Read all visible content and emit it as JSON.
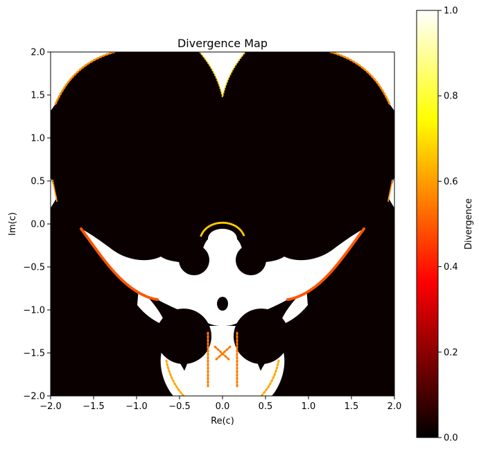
{
  "chart_data": {
    "type": "heatmap",
    "title": "Divergence Map",
    "xlabel": "Re(c)",
    "ylabel": "Im(c)",
    "xlim": [
      -2.0,
      2.0
    ],
    "ylim": [
      -2.0,
      2.0
    ],
    "xticks": [
      -2.0,
      -1.5,
      -1.0,
      -0.5,
      0.0,
      0.5,
      1.0,
      1.5,
      2.0
    ],
    "yticks": [
      -2.0,
      -1.5,
      -1.0,
      -0.5,
      0.0,
      0.5,
      1.0,
      1.5,
      2.0
    ],
    "xtick_labels": [
      "−2.0",
      "−1.5",
      "−1.0",
      "−0.5",
      "0.0",
      "0.5",
      "1.0",
      "1.5",
      "2.0"
    ],
    "ytick_labels": [
      "−2.0",
      "−1.5",
      "−1.0",
      "−0.5",
      "0.0",
      "0.5",
      "1.0",
      "1.5",
      "2.0"
    ],
    "colormap": "hot",
    "colorbar": {
      "label": "Divergence",
      "range": [
        0.0,
        1.0
      ],
      "ticks": [
        0.0,
        0.2,
        0.4,
        0.6,
        0.8,
        1.0
      ],
      "tick_labels": [
        "0.0",
        "0.2",
        "0.4",
        "0.6",
        "0.8",
        "1.0"
      ]
    },
    "grid": false,
    "regions": {
      "bounded_set_value": 0.0,
      "escaped_value": 1.0,
      "boundary_values": "0.0-1.0"
    }
  },
  "colors": {
    "hot_black": "#0a0000",
    "hot_red": "#ff0000",
    "hot_yellow": "#ffff00",
    "hot_white": "#ffffff"
  }
}
